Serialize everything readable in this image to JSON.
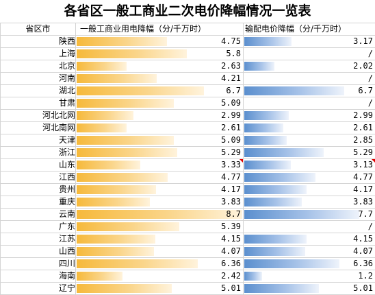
{
  "title": "各省区一般工商业二次电价降幅情况一览表",
  "headers": {
    "province": "省区市",
    "industrial": "一般工商业用电降幅（分/千万时）",
    "transmission": "输配电价降幅（分/千万时）"
  },
  "colors": {
    "industrial_bar": "#f6b93b",
    "transmission_bar": "#5b8fce",
    "comment_marker": "#e00000"
  },
  "chart_data": {
    "type": "table",
    "title": "各省区一般工商业二次电价降幅情况一览表",
    "columns": [
      "省区市",
      "一般工商业用电降幅（分/千万时）",
      "输配电价降幅（分/千万时）"
    ],
    "scale_max": 8.7,
    "rows": [
      {
        "province": "陕西",
        "industrial": 4.75,
        "transmission": 3.17
      },
      {
        "province": "上海",
        "industrial": 5.8,
        "transmission": "/"
      },
      {
        "province": "北京",
        "industrial": 2.63,
        "transmission": 2.02
      },
      {
        "province": "河南",
        "industrial": 4.21,
        "transmission": "/"
      },
      {
        "province": "湖北",
        "industrial": 6.7,
        "transmission": 6.7
      },
      {
        "province": "甘肃",
        "industrial": 5.09,
        "transmission": "/"
      },
      {
        "province": "河北北网",
        "industrial": 2.99,
        "transmission": 2.99
      },
      {
        "province": "河北南网",
        "industrial": 2.61,
        "transmission": 2.61
      },
      {
        "province": "天津",
        "industrial": 5.09,
        "transmission": 2.85
      },
      {
        "province": "浙江",
        "industrial": 5.29,
        "transmission": 5.29
      },
      {
        "province": "山东",
        "industrial": 3.33,
        "transmission": 3.13,
        "flag_industrial": true,
        "flag_transmission": true
      },
      {
        "province": "江西",
        "industrial": 4.77,
        "transmission": 4.77
      },
      {
        "province": "贵州",
        "industrial": 4.17,
        "transmission": 4.17
      },
      {
        "province": "重庆",
        "industrial": 3.83,
        "transmission": 3.83
      },
      {
        "province": "云南",
        "industrial": 8.7,
        "transmission": 7.7
      },
      {
        "province": "广东",
        "industrial": 5.39,
        "transmission": "/"
      },
      {
        "province": "江苏",
        "industrial": 4.15,
        "transmission": 4.15
      },
      {
        "province": "山西",
        "industrial": 4.07,
        "transmission": 4.07
      },
      {
        "province": "四川",
        "industrial": 6.36,
        "transmission": 6.36
      },
      {
        "province": "海南",
        "industrial": 2.42,
        "transmission": 1.2
      },
      {
        "province": "辽宁",
        "industrial": 5.01,
        "transmission": 5.01
      }
    ]
  }
}
